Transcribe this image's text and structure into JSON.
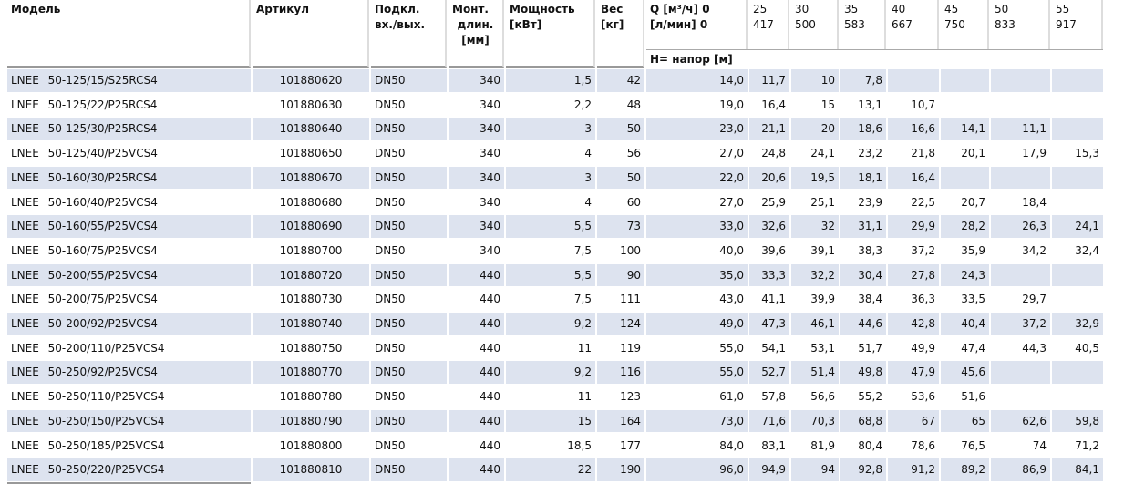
{
  "header": {
    "columns": [
      {
        "lines": [
          "Модель"
        ]
      },
      {
        "lines": [
          "Артикул"
        ]
      },
      {
        "lines": [
          "Подкл.",
          "вх./вых."
        ]
      },
      {
        "lines": [
          "Монт.",
          "длин.",
          "[мм]"
        ]
      },
      {
        "lines": [
          "Мощность",
          "[кВт]"
        ]
      },
      {
        "lines": [
          "Вес",
          "[кг]"
        ]
      },
      {
        "lines": [
          "Q [м³/ч] 0",
          "[л/мин] 0"
        ]
      },
      {
        "lines": [
          "25",
          "417"
        ]
      },
      {
        "lines": [
          "30",
          "500"
        ]
      },
      {
        "lines": [
          "35",
          "583"
        ]
      },
      {
        "lines": [
          "40",
          "667"
        ]
      },
      {
        "lines": [
          "45",
          "750"
        ]
      },
      {
        "lines": [
          "50",
          "833"
        ]
      },
      {
        "lines": [
          "55",
          "917"
        ]
      }
    ],
    "subheader": "H= напор [м]"
  },
  "table": {
    "rows": [
      [
        "LNEE 50-125/15/S25RCS4",
        "101880620",
        "DN50",
        "340",
        "1,5",
        "42",
        "14,0",
        "11,7",
        "10",
        "7,8"
      ],
      [
        "LNEE 50-125/22/P25RCS4",
        "101880630",
        "DN50",
        "340",
        "2,2",
        "48",
        "19,0",
        "16,4",
        "15",
        "13,1",
        "10,7"
      ],
      [
        "LNEE 50-125/30/P25RCS4",
        "101880640",
        "DN50",
        "340",
        "3",
        "50",
        "23,0",
        "21,1",
        "20",
        "18,6",
        "16,6",
        "14,1",
        "11,1"
      ],
      [
        "LNEE 50-125/40/P25VCS4",
        "101880650",
        "DN50",
        "340",
        "4",
        "56",
        "27,0",
        "24,8",
        "24,1",
        "23,2",
        "21,8",
        "20,1",
        "17,9",
        "15,3"
      ],
      [
        "LNEE 50-160/30/P25RCS4",
        "101880670",
        "DN50",
        "340",
        "3",
        "50",
        "22,0",
        "20,6",
        "19,5",
        "18,1",
        "16,4"
      ],
      [
        "LNEE 50-160/40/P25VCS4",
        "101880680",
        "DN50",
        "340",
        "4",
        "60",
        "27,0",
        "25,9",
        "25,1",
        "23,9",
        "22,5",
        "20,7",
        "18,4"
      ],
      [
        "LNEE 50-160/55/P25VCS4",
        "101880690",
        "DN50",
        "340",
        "5,5",
        "73",
        "33,0",
        "32,6",
        "32",
        "31,1",
        "29,9",
        "28,2",
        "26,3",
        "24,1"
      ],
      [
        "LNEE 50-160/75/P25VCS4",
        "101880700",
        "DN50",
        "340",
        "7,5",
        "100",
        "40,0",
        "39,6",
        "39,1",
        "38,3",
        "37,2",
        "35,9",
        "34,2",
        "32,4"
      ],
      [
        "LNEE 50-200/55/P25VCS4",
        "101880720",
        "DN50",
        "440",
        "5,5",
        "90",
        "35,0",
        "33,3",
        "32,2",
        "30,4",
        "27,8",
        "24,3"
      ],
      [
        "LNEE 50-200/75/P25VCS4",
        "101880730",
        "DN50",
        "440",
        "7,5",
        "111",
        "43,0",
        "41,1",
        "39,9",
        "38,4",
        "36,3",
        "33,5",
        "29,7"
      ],
      [
        "LNEE 50-200/92/P25VCS4",
        "101880740",
        "DN50",
        "440",
        "9,2",
        "124",
        "49,0",
        "47,3",
        "46,1",
        "44,6",
        "42,8",
        "40,4",
        "37,2",
        "32,9"
      ],
      [
        "LNEE 50-200/110/P25VCS4",
        "101880750",
        "DN50",
        "440",
        "11",
        "119",
        "55,0",
        "54,1",
        "53,1",
        "51,7",
        "49,9",
        "47,4",
        "44,3",
        "40,5"
      ],
      [
        "LNEE 50-250/92/P25VCS4",
        "101880770",
        "DN50",
        "440",
        "9,2",
        "116",
        "55,0",
        "52,7",
        "51,4",
        "49,8",
        "47,9",
        "45,6"
      ],
      [
        "LNEE 50-250/110/P25VCS4",
        "101880780",
        "DN50",
        "440",
        "11",
        "123",
        "61,0",
        "57,8",
        "56,6",
        "55,2",
        "53,6",
        "51,6"
      ],
      [
        "LNEE 50-250/150/P25VCS4",
        "101880790",
        "DN50",
        "440",
        "15",
        "164",
        "73,0",
        "71,6",
        "70,3",
        "68,8",
        "67",
        "65",
        "62,6",
        "59,8"
      ],
      [
        "LNEE 50-250/185/P25VCS4",
        "101880800",
        "DN50",
        "440",
        "18,5",
        "177",
        "84,0",
        "83,1",
        "81,9",
        "80,4",
        "78,6",
        "76,5",
        "74",
        "71,2"
      ],
      [
        "LNEE 50-250/220/P25VCS4",
        "101880810",
        "DN50",
        "440",
        "22",
        "190",
        "96,0",
        "94,9",
        "94",
        "92,8",
        "91,2",
        "89,2",
        "86,9",
        "84,1"
      ]
    ]
  }
}
